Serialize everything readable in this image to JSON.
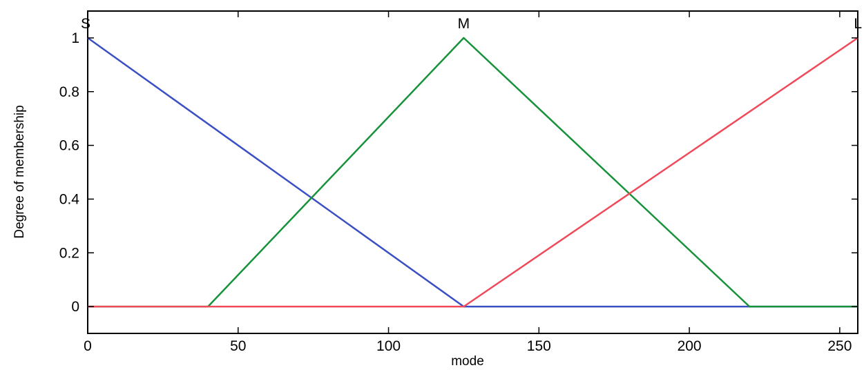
{
  "chart_data": {
    "type": "line",
    "title": "",
    "xlabel": "mode",
    "ylabel": "Degree of membership",
    "xlim": [
      0,
      256
    ],
    "ylim": [
      -0.1,
      1.1
    ],
    "xticks": [
      0,
      50,
      100,
      150,
      200,
      250
    ],
    "yticks": [
      0,
      0.2,
      0.4,
      0.6,
      0.8,
      1
    ],
    "xtick_labels": [
      "0",
      "50",
      "100",
      "150",
      "200",
      "250"
    ],
    "ytick_labels": [
      "0",
      "0.2",
      "0.4",
      "0.6",
      "0.8",
      "1"
    ],
    "grid": false,
    "series": [
      {
        "name": "S",
        "color": "#3a4fc4",
        "x": [
          0,
          125,
          256
        ],
        "y": [
          1,
          0,
          0
        ]
      },
      {
        "name": "M",
        "color": "#16923a",
        "x": [
          0,
          40,
          125,
          220,
          256
        ],
        "y": [
          0,
          0,
          1,
          0,
          0
        ]
      },
      {
        "name": "L",
        "color": "#f04a5a",
        "x": [
          0,
          125,
          256
        ],
        "y": [
          0,
          0,
          1
        ]
      }
    ]
  }
}
